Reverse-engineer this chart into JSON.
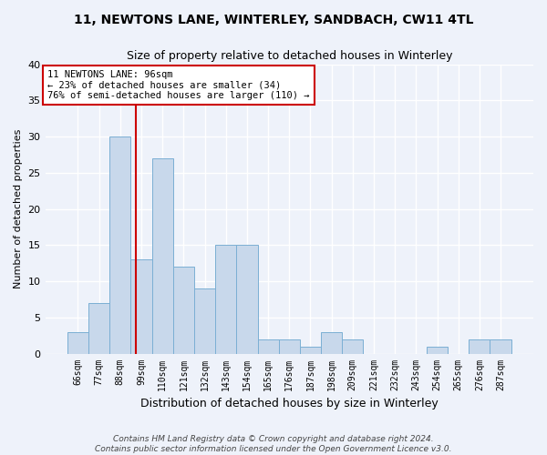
{
  "title_line1": "11, NEWTONS LANE, WINTERLEY, SANDBACH, CW11 4TL",
  "title_line2": "Size of property relative to detached houses in Winterley",
  "xlabel": "Distribution of detached houses by size in Winterley",
  "ylabel": "Number of detached properties",
  "bar_color": "#c8d8eb",
  "bar_edge_color": "#7bafd4",
  "categories": [
    "66sqm",
    "77sqm",
    "88sqm",
    "99sqm",
    "110sqm",
    "121sqm",
    "132sqm",
    "143sqm",
    "154sqm",
    "165sqm",
    "176sqm",
    "187sqm",
    "198sqm",
    "209sqm",
    "221sqm",
    "232sqm",
    "243sqm",
    "254sqm",
    "265sqm",
    "276sqm",
    "287sqm"
  ],
  "values": [
    3,
    7,
    30,
    13,
    27,
    12,
    9,
    15,
    15,
    2,
    2,
    1,
    3,
    2,
    0,
    0,
    0,
    1,
    0,
    2,
    2
  ],
  "ylim": [
    0,
    40
  ],
  "yticks": [
    0,
    5,
    10,
    15,
    20,
    25,
    30,
    35,
    40
  ],
  "annotation_line1": "11 NEWTONS LANE: 96sqm",
  "annotation_line2": "← 23% of detached houses are smaller (34)",
  "annotation_line3": "76% of semi-detached houses are larger (110) →",
  "footnote1": "Contains HM Land Registry data © Crown copyright and database right 2024.",
  "footnote2": "Contains public sector information licensed under the Open Government Licence v3.0.",
  "background_color": "#eef2fa",
  "grid_color": "#ffffff",
  "annotation_box_color": "#ffffff",
  "annotation_box_edge_color": "#cc0000",
  "vline_color": "#cc0000",
  "title1_fontsize": 10,
  "title2_fontsize": 9
}
